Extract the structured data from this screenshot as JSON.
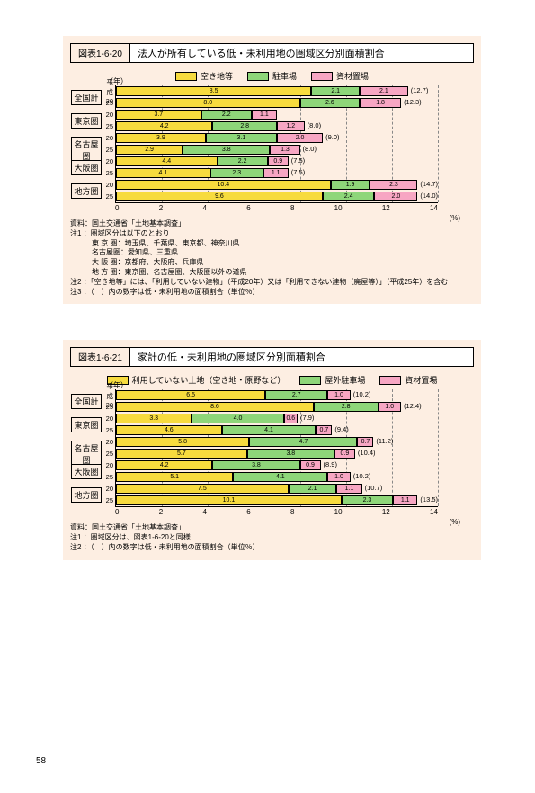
{
  "pageNumber": "58",
  "charts": [
    {
      "tag": "図表1-6-20",
      "title": "法人が所有している低・未利用地の圏域区分別面積割合",
      "legend": [
        "空き地等",
        "駐車場",
        "資材置場"
      ],
      "colors": {
        "seg1": "#f7db3e",
        "seg2": "#8ed679",
        "seg3": "#f7a6c3"
      },
      "yearUnit": "（年）",
      "xMax": 14,
      "xTickStep": 2,
      "xUnit": "（％）",
      "groups": [
        {
          "label": "全国計",
          "rows": [
            {
              "yr": "平成20",
              "values": [
                8.5,
                2.1,
                2.1
              ],
              "total": "(12.7)"
            },
            {
              "yr": "25",
              "values": [
                8.0,
                2.6,
                1.8
              ],
              "total": "(12.3)"
            }
          ]
        },
        {
          "label": "東京圏",
          "rows": [
            {
              "yr": "20",
              "values": [
                3.7,
                2.2,
                1.1
              ],
              "showVals": [
                1,
                1,
                1
              ],
              "total": ""
            },
            {
              "yr": "25",
              "values": [
                4.2,
                2.8,
                1.2
              ],
              "total": "(8.0)"
            }
          ]
        },
        {
          "label": "名古屋圏",
          "rows": [
            {
              "yr": "20",
              "values": [
                3.9,
                3.1,
                2.0
              ],
              "total": "(9.0)"
            },
            {
              "yr": "25",
              "values": [
                2.9,
                3.8,
                1.3
              ],
              "total": "(8.0)"
            }
          ]
        },
        {
          "label": "大阪圏",
          "rows": [
            {
              "yr": "20",
              "values": [
                4.4,
                2.2,
                0.9
              ],
              "total": "(7.5)"
            },
            {
              "yr": "25",
              "values": [
                4.1,
                2.3,
                1.1
              ],
              "total": "(7.5)"
            }
          ]
        },
        {
          "label": "地方圏",
          "rows": [
            {
              "yr": "20",
              "values": [
                10.4,
                1.9,
                2.3
              ],
              "total": "(14.7)"
            },
            {
              "yr": "25",
              "values": [
                9.6,
                2.4,
                2.0
              ],
              "total": "(14.0)"
            }
          ]
        }
      ],
      "notes": [
        "資料：国土交通省「土地基本調査」",
        "注1 ：圏域区分は以下のとおり",
        "　　　東 京 圏：埼玉県、千葉県、東京都、神奈川県",
        "　　　名古屋圏：愛知県、三重県",
        "　　　大 阪 圏：京都府、大阪府、兵庫県",
        "　　　地 方 圏：東京圏、名古屋圏、大阪圏以外の道県",
        "注2 ：「空き地等」には、「利用していない建物」（平成20年）又は「利用できない建物（廃屋等）」（平成25年）を含む",
        "注3 ：（　）内の数字は低・未利用地の面積割合（単位％）"
      ]
    },
    {
      "tag": "図表1-6-21",
      "title": "家計の低・未利用地の圏域区分別面積割合",
      "legend": [
        "利用していない土地（空き地・原野など）",
        "屋外駐車場",
        "資材置場"
      ],
      "colors": {
        "seg1": "#f7db3e",
        "seg2": "#8ed679",
        "seg3": "#f7a6c3"
      },
      "yearUnit": "（年）",
      "xMax": 14,
      "xTickStep": 2,
      "xUnit": "14(%)",
      "groups": [
        {
          "label": "全国計",
          "rows": [
            {
              "yr": "平成20",
              "values": [
                6.5,
                2.7,
                1.0
              ],
              "total": "(10.2)"
            },
            {
              "yr": "25",
              "values": [
                8.6,
                2.8,
                1.0
              ],
              "total": "(12.4)"
            }
          ]
        },
        {
          "label": "東京圏",
          "rows": [
            {
              "yr": "20",
              "values": [
                3.3,
                4.0,
                0.6
              ],
              "total": "(7.9)"
            },
            {
              "yr": "25",
              "values": [
                4.6,
                4.1,
                0.7
              ],
              "total": "(9.4)"
            }
          ]
        },
        {
          "label": "名古屋圏",
          "rows": [
            {
              "yr": "20",
              "values": [
                5.8,
                4.7,
                0.7
              ],
              "total": "(11.2)"
            },
            {
              "yr": "25",
              "values": [
                5.7,
                3.8,
                0.9
              ],
              "total": "(10.4)"
            }
          ]
        },
        {
          "label": "大阪圏",
          "rows": [
            {
              "yr": "20",
              "values": [
                4.2,
                3.8,
                0.9
              ],
              "total": "(8.9)"
            },
            {
              "yr": "25",
              "values": [
                5.1,
                4.1,
                1.0
              ],
              "total": "(10.2)"
            }
          ]
        },
        {
          "label": "地方圏",
          "rows": [
            {
              "yr": "20",
              "values": [
                7.5,
                2.1,
                1.1
              ],
              "total": "(10.7)"
            },
            {
              "yr": "25",
              "values": [
                10.1,
                2.3,
                1.1
              ],
              "total": "(13.5)"
            }
          ]
        }
      ],
      "notes": [
        "資料：国土交通省「土地基本調査」",
        "注1 ：圏域区分は、図表1-6-20と同様",
        "注2 ：（　）内の数字は低・未利用地の面積割合（単位％）"
      ]
    }
  ]
}
